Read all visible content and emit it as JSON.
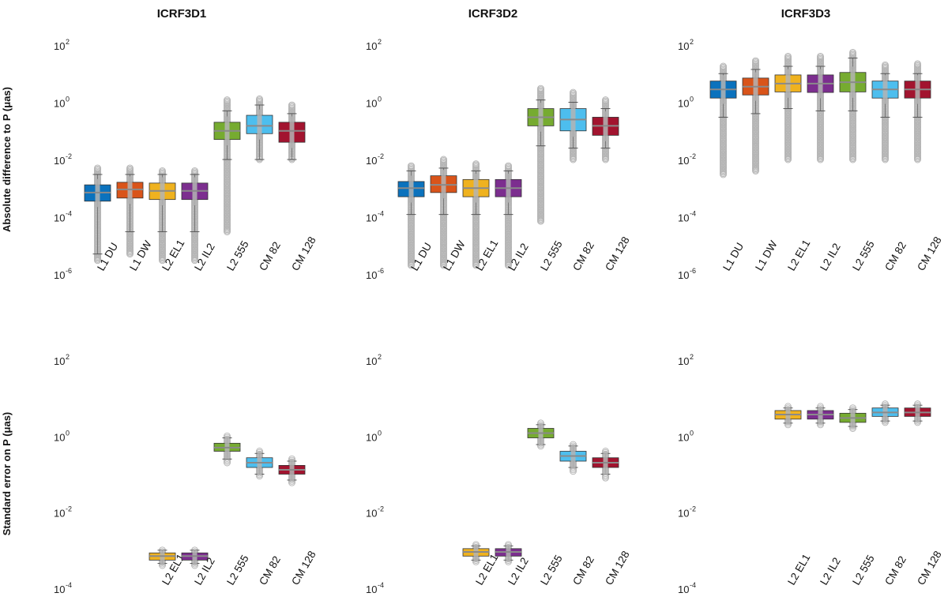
{
  "column_titles": [
    "ICRF3D1",
    "ICRF3D2",
    "ICRF3D3"
  ],
  "row_labels": [
    "Absolute difference to P (μas)",
    "Standard error on P (μas)"
  ],
  "tick_base": "10",
  "colors": {
    "L1 DU": "#0b72bd",
    "L1 DW": "#d9541a",
    "L2 EL1": "#efb21f",
    "L2 IL2": "#7c2e8f",
    "L2 555": "#76ab30",
    "CM 82": "#4dbeee",
    "CM 128": "#a2142f",
    "outlier": "#b4b4b4",
    "median": "#8a8a8a"
  },
  "chart_data": [
    {
      "type": "box",
      "row": 0,
      "col": 0,
      "title": "ICRF3D1",
      "ylabel": "Absolute difference to P (μas)",
      "yscale": "log",
      "ylim_exp": [
        -6,
        2
      ],
      "yticks_exp": [
        "-6",
        "-4",
        "-2",
        "0",
        "2"
      ],
      "categories": [
        "L1 DU",
        "L1 DW",
        "L2 EL1",
        "L2 IL2",
        "L2 555",
        "CM 82",
        "CM 128"
      ],
      "boxes": [
        {
          "q1": 0.00035,
          "median": 0.0007,
          "q3": 0.0013,
          "wlo": 5e-06,
          "whi": 0.003,
          "omin": 3e-06,
          "omax": 0.005
        },
        {
          "q1": 0.00045,
          "median": 0.0009,
          "q3": 0.0016,
          "wlo": 3e-05,
          "whi": 0.003,
          "omin": 5e-06,
          "omax": 0.005
        },
        {
          "q1": 0.0004,
          "median": 0.0008,
          "q3": 0.0015,
          "wlo": 3e-05,
          "whi": 0.003,
          "omin": 3e-06,
          "omax": 0.004
        },
        {
          "q1": 0.0004,
          "median": 0.0008,
          "q3": 0.0015,
          "wlo": 3e-05,
          "whi": 0.003,
          "omin": 3e-06,
          "omax": 0.004
        },
        {
          "q1": 0.05,
          "median": 0.1,
          "q3": 0.2,
          "wlo": 0.01,
          "whi": 0.5,
          "omin": 3e-05,
          "omax": 1.2
        },
        {
          "q1": 0.08,
          "median": 0.15,
          "q3": 0.35,
          "wlo": 0.01,
          "whi": 0.8,
          "omin": 0.01,
          "omax": 1.3
        },
        {
          "q1": 0.04,
          "median": 0.1,
          "q3": 0.2,
          "wlo": 0.01,
          "whi": 0.4,
          "omin": 0.01,
          "omax": 0.8
        }
      ]
    },
    {
      "type": "box",
      "row": 0,
      "col": 1,
      "title": "ICRF3D2",
      "ylabel": "",
      "yscale": "log",
      "ylim_exp": [
        -6,
        2
      ],
      "yticks_exp": [
        "-6",
        "-4",
        "-2",
        "0",
        "2"
      ],
      "categories": [
        "L1 DU",
        "L1 DW",
        "L2 EL1",
        "L2 IL2",
        "L2 555",
        "CM 82",
        "CM 128"
      ],
      "boxes": [
        {
          "q1": 0.0005,
          "median": 0.001,
          "q3": 0.0017,
          "wlo": 0.00012,
          "whi": 0.004,
          "omin": 2e-06,
          "omax": 0.006
        },
        {
          "q1": 0.0007,
          "median": 0.0013,
          "q3": 0.0027,
          "wlo": 0.00012,
          "whi": 0.005,
          "omin": 2e-06,
          "omax": 0.01
        },
        {
          "q1": 0.0005,
          "median": 0.001,
          "q3": 0.002,
          "wlo": 0.00012,
          "whi": 0.004,
          "omin": 2e-06,
          "omax": 0.007
        },
        {
          "q1": 0.0005,
          "median": 0.001,
          "q3": 0.002,
          "wlo": 0.00012,
          "whi": 0.004,
          "omin": 2e-06,
          "omax": 0.006
        },
        {
          "q1": 0.15,
          "median": 0.3,
          "q3": 0.6,
          "wlo": 0.03,
          "whi": 1.2,
          "omin": 7e-05,
          "omax": 3
        },
        {
          "q1": 0.1,
          "median": 0.25,
          "q3": 0.6,
          "wlo": 0.025,
          "whi": 1.0,
          "omin": 0.01,
          "omax": 2.2
        },
        {
          "q1": 0.07,
          "median": 0.15,
          "q3": 0.3,
          "wlo": 0.025,
          "whi": 0.6,
          "omin": 0.01,
          "omax": 1.2
        }
      ]
    },
    {
      "type": "box",
      "row": 0,
      "col": 2,
      "title": "ICRF3D3",
      "ylabel": "",
      "yscale": "log",
      "ylim_exp": [
        -6,
        2
      ],
      "yticks_exp": [
        "-6",
        "-4",
        "-2",
        "0",
        "2"
      ],
      "categories": [
        "L1 DU",
        "L1 DW",
        "L2 EL1",
        "L2 IL2",
        "L2 555",
        "CM 82",
        "CM 128"
      ],
      "boxes": [
        {
          "q1": 1.4,
          "median": 2.8,
          "q3": 5.5,
          "wlo": 0.3,
          "whi": 10,
          "omin": 0.003,
          "omax": 18
        },
        {
          "q1": 1.8,
          "median": 3.5,
          "q3": 7,
          "wlo": 0.4,
          "whi": 14,
          "omin": 0.004,
          "omax": 28
        },
        {
          "q1": 2.3,
          "median": 4.5,
          "q3": 9,
          "wlo": 0.6,
          "whi": 18,
          "omin": 0.01,
          "omax": 40
        },
        {
          "q1": 2.2,
          "median": 4.5,
          "q3": 9,
          "wlo": 0.5,
          "whi": 18,
          "omin": 0.01,
          "omax": 40
        },
        {
          "q1": 2.3,
          "median": 5,
          "q3": 11,
          "wlo": 0.5,
          "whi": 35,
          "omin": 0.01,
          "omax": 55
        },
        {
          "q1": 1.4,
          "median": 2.8,
          "q3": 5.5,
          "wlo": 0.3,
          "whi": 10,
          "omin": 0.01,
          "omax": 20
        },
        {
          "q1": 1.4,
          "median": 2.8,
          "q3": 5.5,
          "wlo": 0.3,
          "whi": 10,
          "omin": 0.01,
          "omax": 22
        }
      ]
    },
    {
      "type": "box",
      "row": 1,
      "col": 0,
      "title": "",
      "ylabel": "Standard error on P (μas)",
      "yscale": "log",
      "ylim_exp": [
        -4,
        2
      ],
      "yticks_exp": [
        "-4",
        "-2",
        "0",
        "2"
      ],
      "categories": [
        "L2 EL1",
        "L2 IL2",
        "L2 555",
        "CM 82",
        "CM 128"
      ],
      "boxes": [
        {
          "q1": 0.00055,
          "median": 0.0007,
          "q3": 0.00085,
          "wlo": 0.00045,
          "whi": 0.001,
          "omin": 0.0004,
          "omax": 0.001
        },
        {
          "q1": 0.00055,
          "median": 0.0007,
          "q3": 0.00085,
          "wlo": 0.00045,
          "whi": 0.001,
          "omin": 0.0004,
          "omax": 0.001
        },
        {
          "q1": 0.4,
          "median": 0.5,
          "q3": 0.65,
          "wlo": 0.25,
          "whi": 0.9,
          "omin": 0.2,
          "omax": 1.0
        },
        {
          "q1": 0.15,
          "median": 0.2,
          "q3": 0.27,
          "wlo": 0.1,
          "whi": 0.35,
          "omin": 0.09,
          "omax": 0.4
        },
        {
          "q1": 0.1,
          "median": 0.13,
          "q3": 0.17,
          "wlo": 0.07,
          "whi": 0.22,
          "omin": 0.06,
          "omax": 0.25
        }
      ]
    },
    {
      "type": "box",
      "row": 1,
      "col": 1,
      "title": "",
      "ylabel": "",
      "yscale": "log",
      "ylim_exp": [
        -4,
        2
      ],
      "yticks_exp": [
        "-4",
        "-2",
        "0",
        "2"
      ],
      "categories": [
        "L2 EL1",
        "L2 IL2",
        "L2 555",
        "CM 82",
        "CM 128"
      ],
      "boxes": [
        {
          "q1": 0.0007,
          "median": 0.0009,
          "q3": 0.0011,
          "wlo": 0.00055,
          "whi": 0.0013,
          "omin": 0.0005,
          "omax": 0.0014
        },
        {
          "q1": 0.0007,
          "median": 0.0009,
          "q3": 0.0011,
          "wlo": 0.00055,
          "whi": 0.0013,
          "omin": 0.0005,
          "omax": 0.0014
        },
        {
          "q1": 0.9,
          "median": 1.2,
          "q3": 1.6,
          "wlo": 0.6,
          "whi": 2.0,
          "omin": 0.55,
          "omax": 2.2
        },
        {
          "q1": 0.22,
          "median": 0.3,
          "q3": 0.4,
          "wlo": 0.15,
          "whi": 0.55,
          "omin": 0.12,
          "omax": 0.6
        },
        {
          "q1": 0.15,
          "median": 0.2,
          "q3": 0.27,
          "wlo": 0.1,
          "whi": 0.35,
          "omin": 0.08,
          "omax": 0.4
        }
      ]
    },
    {
      "type": "box",
      "row": 1,
      "col": 2,
      "title": "",
      "ylabel": "",
      "yscale": "log",
      "ylim_exp": [
        -4,
        2
      ],
      "yticks_exp": [
        "-4",
        "-2",
        "0",
        "2"
      ],
      "categories": [
        "L2 EL1",
        "L2 IL2",
        "L2 555",
        "CM 82",
        "CM 128"
      ],
      "boxes": [
        {
          "q1": 2.8,
          "median": 3.7,
          "q3": 4.7,
          "wlo": 2.2,
          "whi": 5.5,
          "omin": 2.0,
          "omax": 6
        },
        {
          "q1": 2.8,
          "median": 3.7,
          "q3": 4.7,
          "wlo": 2.2,
          "whi": 5.5,
          "omin": 2.0,
          "omax": 6
        },
        {
          "q1": 2.3,
          "median": 3.0,
          "q3": 4.0,
          "wlo": 1.8,
          "whi": 5.0,
          "omin": 1.6,
          "omax": 5.5
        },
        {
          "q1": 3.3,
          "median": 4.2,
          "q3": 5.5,
          "wlo": 2.5,
          "whi": 6.5,
          "omin": 2.3,
          "omax": 7
        },
        {
          "q1": 3.3,
          "median": 4.2,
          "q3": 5.5,
          "wlo": 2.5,
          "whi": 6.5,
          "omin": 2.3,
          "omax": 7
        }
      ]
    }
  ]
}
